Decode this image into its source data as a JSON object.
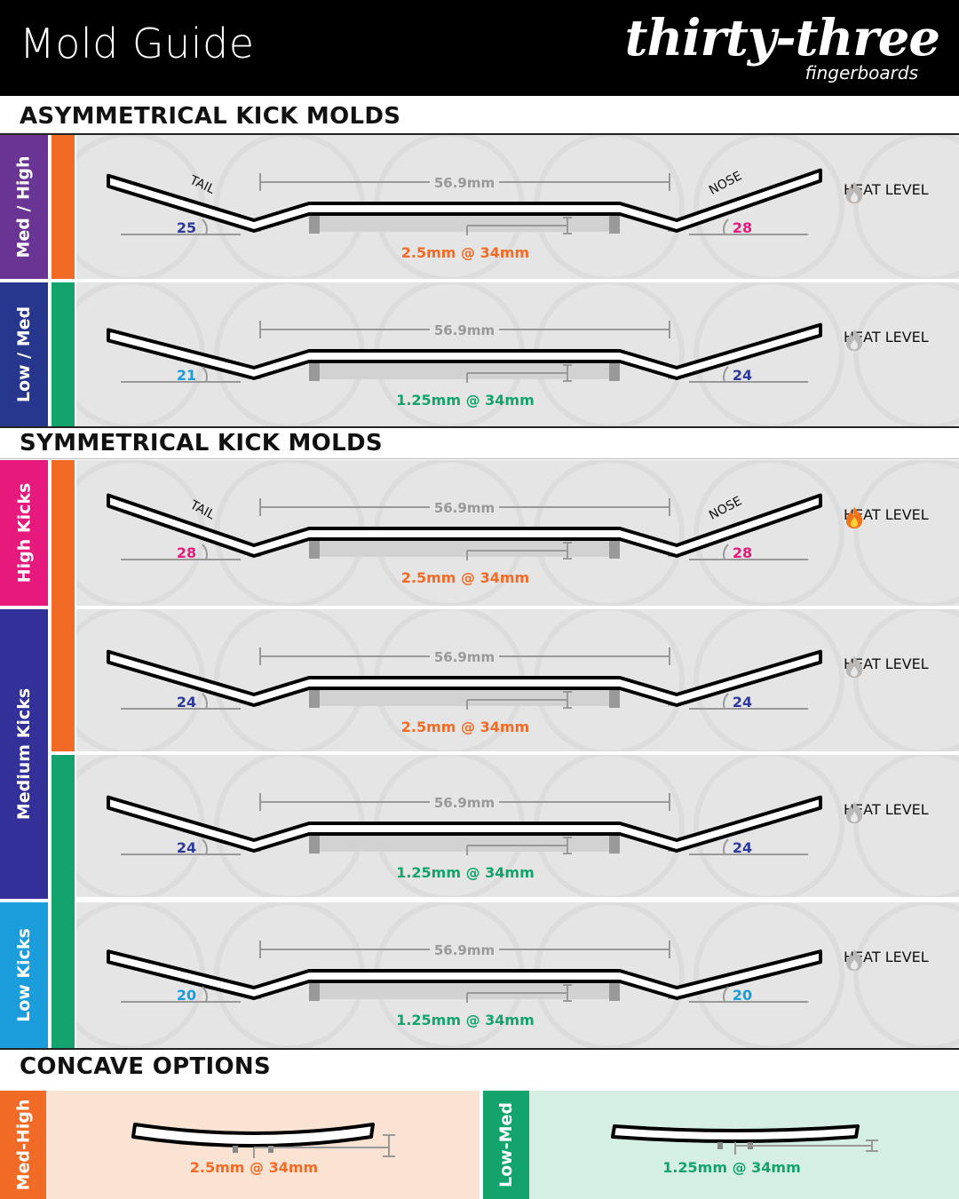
{
  "header": {
    "title": "Mold Guide",
    "logo_main": "thirty-three",
    "logo_sub": "fingerboards"
  },
  "colors": {
    "orange": "#f26b26",
    "green": "#13a36d",
    "purple": "#6a3494",
    "navy": "#27378d",
    "magenta": "#e6197c",
    "indigo": "#33309a",
    "sky": "#1b9ddc",
    "blue_num": "#2d3a9a"
  },
  "sections": {
    "asym_title": "ASYMMETRICAL KICK MOLDS",
    "sym_title": "SYMMETRICAL KICK MOLDS",
    "concave_title": "CONCAVE OPTIONS"
  },
  "side_labels": {
    "med_high": "Med / High",
    "low_med": "Low / Med",
    "high_kicks": "High Kicks",
    "medium_kicks": "Medium Kicks",
    "low_kicks": "Low Kicks"
  },
  "molds": [
    {
      "tail_label": "TAIL",
      "nose_label": "NOSE",
      "length": "56.9mm",
      "tail_angle": "25",
      "nose_angle": "28",
      "tail_color": "#2d3a9a",
      "nose_color": "#e6197c",
      "concave": "2.5mm @ 34mm",
      "concave_color": "#f26b26",
      "heat_label": "HEAT LEVEL",
      "heat": 3
    },
    {
      "tail_label": "",
      "nose_label": "",
      "length": "56.9mm",
      "tail_angle": "21",
      "nose_angle": "24",
      "tail_color": "#1b9ddc",
      "nose_color": "#2d3a9a",
      "concave": "1.25mm @ 34mm",
      "concave_color": "#13a36d",
      "heat_label": "HEAT LEVEL",
      "heat": 2
    },
    {
      "tail_label": "TAIL",
      "nose_label": "NOSE",
      "length": "56.9mm",
      "tail_angle": "28",
      "nose_angle": "28",
      "tail_color": "#e6197c",
      "nose_color": "#e6197c",
      "concave": "2.5mm @ 34mm",
      "concave_color": "#f26b26",
      "heat_label": "HEAT LEVEL",
      "heat": 4
    },
    {
      "tail_label": "",
      "nose_label": "",
      "length": "56.9mm",
      "tail_angle": "24",
      "nose_angle": "24",
      "tail_color": "#2d3a9a",
      "nose_color": "#2d3a9a",
      "concave": "2.5mm @ 34mm",
      "concave_color": "#f26b26",
      "heat_label": "HEAT LEVEL",
      "heat": 3
    },
    {
      "tail_label": "",
      "nose_label": "",
      "length": "56.9mm",
      "tail_angle": "24",
      "nose_angle": "24",
      "tail_color": "#2d3a9a",
      "nose_color": "#2d3a9a",
      "concave": "1.25mm @ 34mm",
      "concave_color": "#13a36d",
      "heat_label": "HEAT LEVEL",
      "heat": 2
    },
    {
      "tail_label": "",
      "nose_label": "",
      "length": "56.9mm",
      "tail_angle": "20",
      "nose_angle": "20",
      "tail_color": "#1b9ddc",
      "nose_color": "#1b9ddc",
      "concave": "1.25mm @ 34mm",
      "concave_color": "#13a36d",
      "heat_label": "HEAT LEVEL",
      "heat": 1
    }
  ],
  "concave_options": [
    {
      "label": "Med-High",
      "value": "2.5mm @ 34mm",
      "color": "#f26b26"
    },
    {
      "label": "Low-Med",
      "value": "1.25mm @ 34mm",
      "color": "#13a36d"
    }
  ]
}
